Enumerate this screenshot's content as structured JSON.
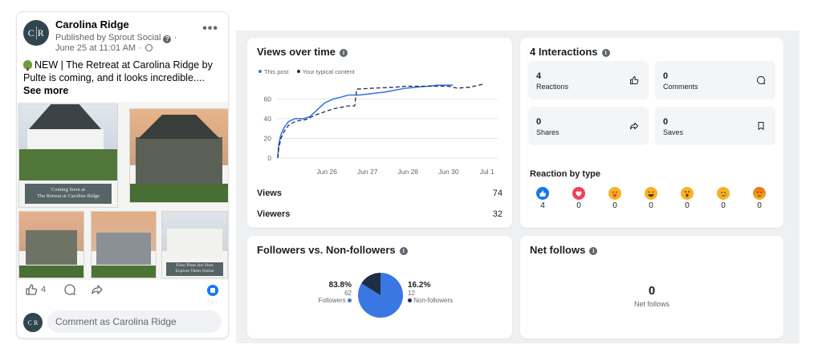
{
  "post": {
    "page_name": "Carolina Ridge",
    "avatar_text": "C R",
    "published_by": "Published by Sprout Social",
    "time": "June 25 at 11:01 AM ·",
    "text": "NEW | The Retreat at Carolina Ridge by Pulte is coming, and it looks incredible.... ",
    "see_more": "See more",
    "caption_1": "Coming Soon at\nThe Retreat at Carolina Ridge",
    "caption_5": "Floor Plans Are Here\nExplore Them Online",
    "like_count": "4",
    "comment_placeholder": "Comment as Carolina Ridge"
  },
  "colors": {
    "accent_blue": "#3b77e3",
    "typical_dark": "#1f2d45",
    "page_bg": "#eef0f2"
  },
  "views_card": {
    "title": "Views over time",
    "legend_post": "This post",
    "legend_typical": "Your typical content",
    "views_label": "Views",
    "views_value": "74",
    "viewers_label": "Viewers",
    "viewers_value": "32"
  },
  "chart_data": {
    "type": "line",
    "title": "Views over time",
    "xlabel": "",
    "ylabel": "",
    "x_ticks": [
      "Jun 26",
      "Jun 27",
      "Jun 28",
      "Jun 30",
      "Jul 1"
    ],
    "y_ticks": [
      0,
      20,
      40,
      60
    ],
    "ylim": [
      0,
      75
    ],
    "grid": true,
    "legend_position": "top-left",
    "series": [
      {
        "name": "This post",
        "color": "#3b77e3",
        "style": "solid",
        "points": [
          [
            0,
            0
          ],
          [
            0.05,
            14
          ],
          [
            0.15,
            24
          ],
          [
            0.3,
            31
          ],
          [
            0.5,
            37
          ],
          [
            0.8,
            40
          ],
          [
            1.2,
            40
          ],
          [
            1.5,
            42
          ],
          [
            1.8,
            48
          ],
          [
            2.2,
            56
          ],
          [
            2.6,
            60
          ],
          [
            3,
            62
          ],
          [
            3.3,
            64
          ],
          [
            3.8,
            64
          ],
          [
            4.2,
            65
          ],
          [
            4.6,
            66
          ],
          [
            5,
            67
          ],
          [
            5.5,
            69
          ],
          [
            6,
            71
          ],
          [
            6.5,
            72
          ],
          [
            7,
            73
          ],
          [
            7.5,
            74
          ],
          [
            8.2,
            74
          ]
        ]
      },
      {
        "name": "Your typical content",
        "color": "#1f2d45",
        "style": "dashed",
        "points": [
          [
            0,
            0
          ],
          [
            0.05,
            10
          ],
          [
            0.15,
            20
          ],
          [
            0.3,
            27
          ],
          [
            0.5,
            33
          ],
          [
            0.8,
            37
          ],
          [
            1,
            38
          ],
          [
            1.3,
            39
          ],
          [
            1.8,
            44
          ],
          [
            2.6,
            50
          ],
          [
            3.3,
            53
          ],
          [
            3.6,
            53
          ],
          [
            3.7,
            70
          ],
          [
            4.5,
            71
          ],
          [
            5.5,
            72
          ],
          [
            6,
            73
          ],
          [
            7,
            73
          ],
          [
            8,
            73
          ],
          [
            8.4,
            71
          ],
          [
            9,
            72
          ],
          [
            9.6,
            75
          ]
        ]
      }
    ],
    "x_tick_positions": [
      2.3,
      4.2,
      6.1,
      8.0,
      9.8
    ],
    "xlim": [
      0,
      10.3
    ]
  },
  "interactions_card": {
    "title": "4 Interactions",
    "tiles": [
      {
        "value": "4",
        "label": "Reactions",
        "icon": "thumbs-up-icon"
      },
      {
        "value": "0",
        "label": "Comments",
        "icon": "comment-bubble-icon"
      },
      {
        "value": "0",
        "label": "Shares",
        "icon": "share-arrow-icon"
      },
      {
        "value": "0",
        "label": "Saves",
        "icon": "bookmark-icon"
      }
    ],
    "reaction_title": "Reaction by type",
    "reactions": [
      {
        "type": "like",
        "count": "4",
        "color": "#1877f2"
      },
      {
        "type": "love",
        "count": "0",
        "color": "#f33e58"
      },
      {
        "type": "care",
        "count": "0",
        "color": "#f7b125"
      },
      {
        "type": "haha",
        "count": "0",
        "color": "#f7b125"
      },
      {
        "type": "wow",
        "count": "0",
        "color": "#f7b125"
      },
      {
        "type": "sad",
        "count": "0",
        "color": "#f7b125"
      },
      {
        "type": "angry",
        "count": "0",
        "color": "#e9710f"
      }
    ]
  },
  "followers_card": {
    "title": "Followers vs. Non-followers",
    "followers_pct": "83.8%",
    "followers_count": "62",
    "followers_label": "Followers",
    "non_pct": "16.2%",
    "non_count": "12",
    "non_label": "Non-followers",
    "followers_fraction": 0.838,
    "followers_color": "#3b77e3",
    "non_color": "#1f2d45"
  },
  "net_follows_card": {
    "title": "Net follows",
    "value": "0",
    "label": "Net follows"
  }
}
